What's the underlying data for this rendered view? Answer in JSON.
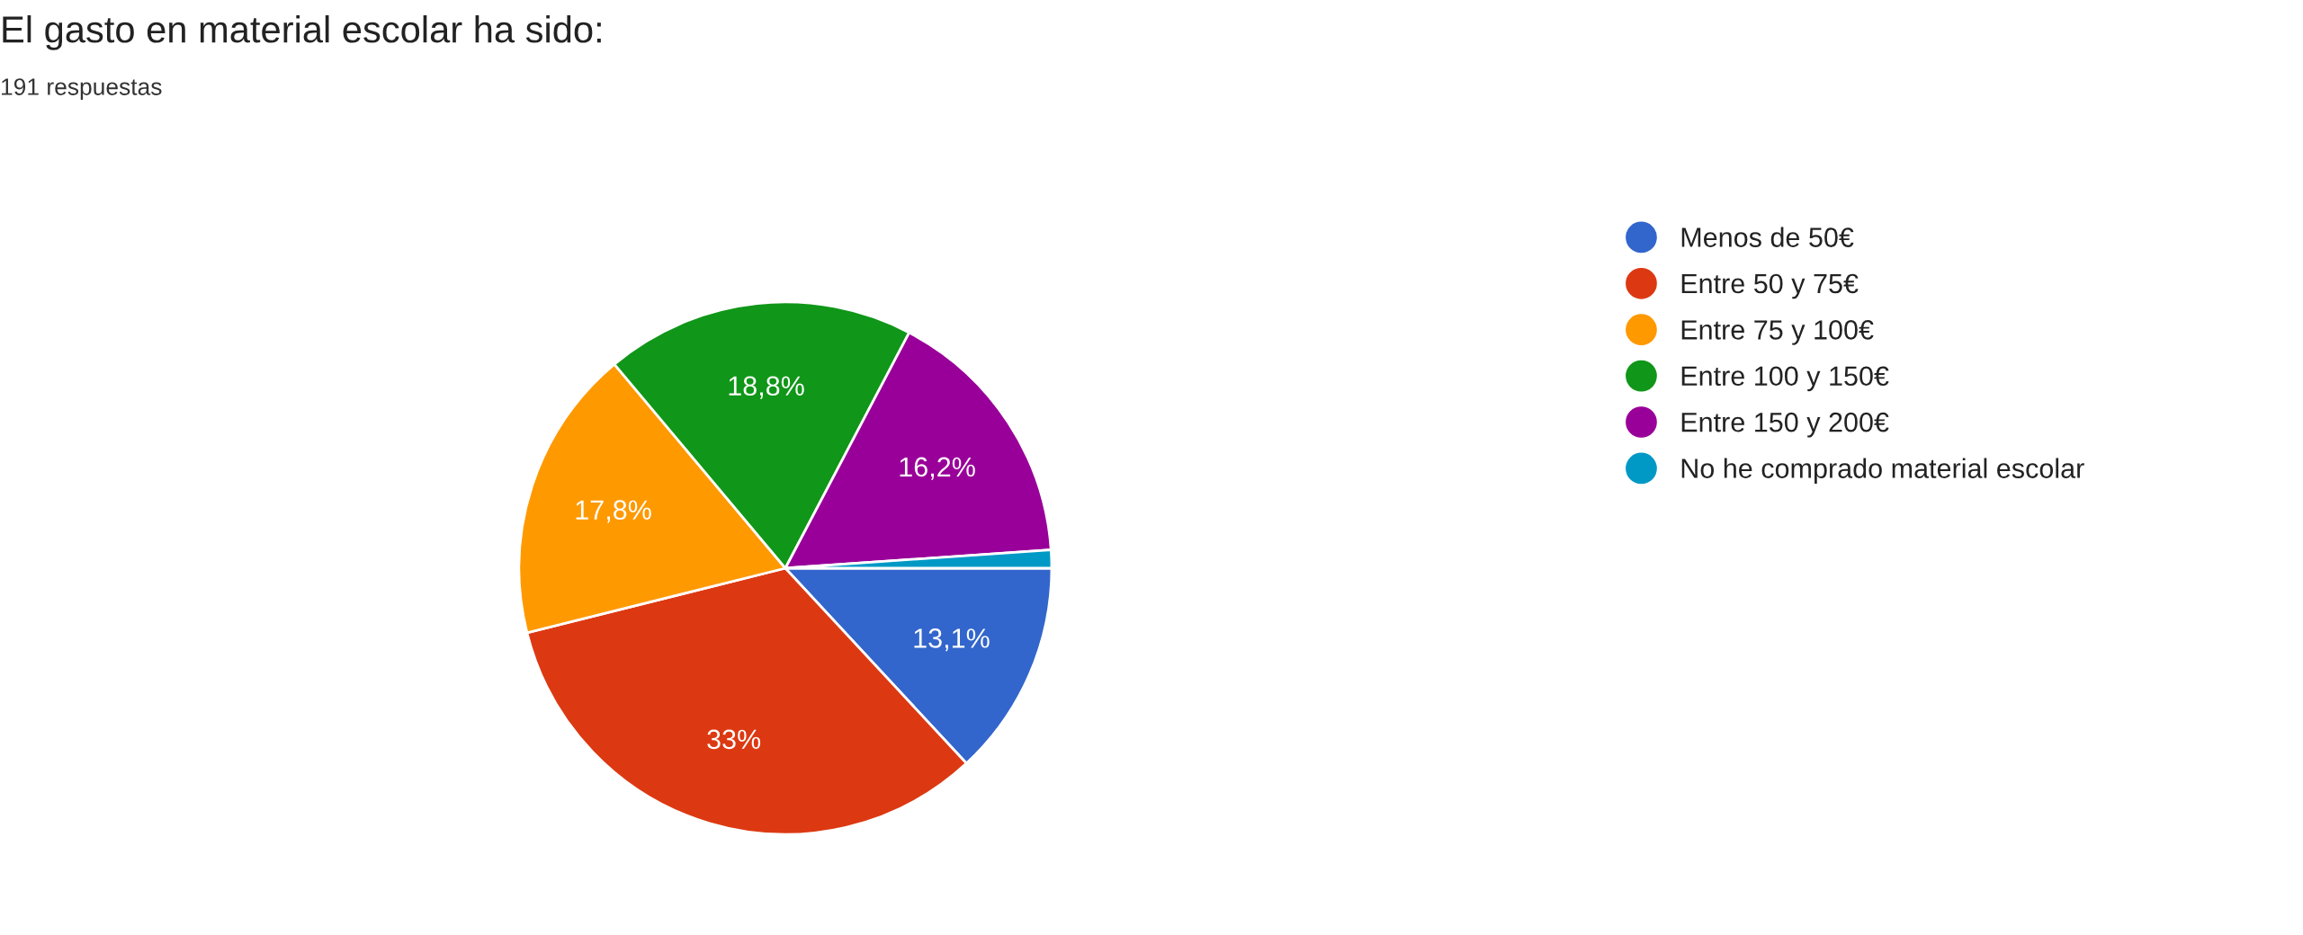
{
  "chart_data": {
    "type": "pie",
    "title": "El gasto en material escolar ha sido:",
    "subtitle": "191 respuestas",
    "categories": [
      "Menos de 50€",
      "Entre 50 y 75€",
      "Entre 75 y 100€",
      "Entre 100 y 150€",
      "Entre 150 y 200€",
      "No he comprado material escolar"
    ],
    "values": [
      13.1,
      33,
      17.8,
      18.8,
      16.2,
      1.1
    ],
    "colors": [
      "#3366cc",
      "#dc3912",
      "#ff9900",
      "#109618",
      "#990099",
      "#0099c6"
    ],
    "value_labels": [
      "13,1%",
      "33%",
      "17,8%",
      "18,8%",
      "16,2%",
      null
    ],
    "legend": "right"
  }
}
